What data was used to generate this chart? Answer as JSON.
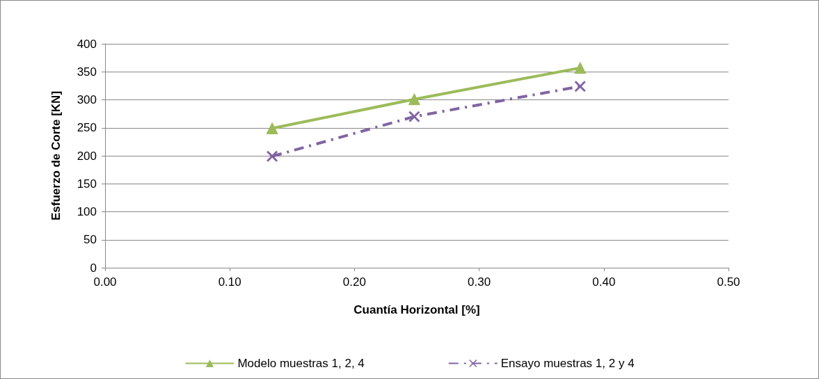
{
  "chart_data": {
    "type": "line",
    "xlabel": "Cuantía Horizontal [%]",
    "ylabel": "Esfuerzo de Corte [KN]",
    "xlim": [
      0,
      0.5
    ],
    "xticks": [
      {
        "value": 0,
        "label": "0.00"
      },
      {
        "value": 0.1,
        "label": "0.10"
      },
      {
        "value": 0.2,
        "label": "0.20"
      },
      {
        "value": 0.3,
        "label": "0.30"
      },
      {
        "value": 0.4,
        "label": "0.40"
      },
      {
        "value": 0.5,
        "label": "0.50"
      }
    ],
    "ylim": [
      0,
      400
    ],
    "yticks": [
      0,
      50,
      100,
      150,
      200,
      250,
      300,
      350,
      400
    ],
    "grid": "y",
    "legend": "bottom",
    "series": [
      {
        "name": "Modelo muestras 1, 2, 4",
        "color": "#9bbb59",
        "x": [
          0.134,
          0.248,
          0.381
        ],
        "values": [
          249,
          301,
          357
        ],
        "marker": "triangle",
        "line_style": "solid"
      },
      {
        "name": "Ensayo muestras 1, 2 y 4",
        "color": "#8064a2",
        "x": [
          0.134,
          0.248,
          0.381
        ],
        "values": [
          199,
          270,
          324
        ],
        "marker": "cross",
        "line_style": "dashed"
      }
    ]
  }
}
